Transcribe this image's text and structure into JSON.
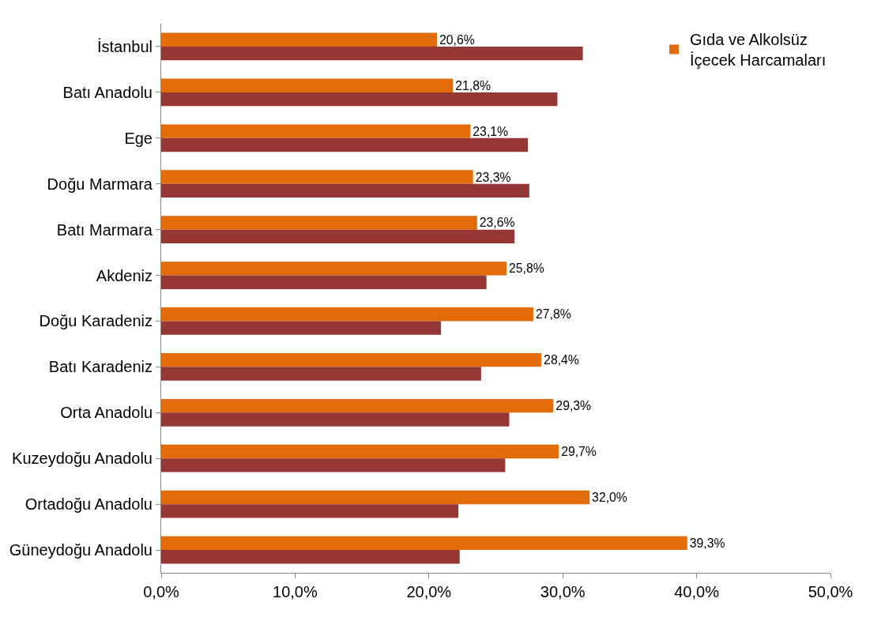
{
  "chart_data": {
    "type": "bar",
    "orientation": "horizontal",
    "categories": [
      "İstanbul",
      "Batı Anadolu",
      "Ege",
      "Doğu Marmara",
      "Batı Marmara",
      "Akdeniz",
      "Doğu Karadeniz",
      "Batı Karadeniz",
      "Orta Anadolu",
      "Kuzeydoğu Anadolu",
      "Ortadoğu Anadolu",
      "Güneydoğu Anadolu"
    ],
    "series": [
      {
        "name": "Gıda ve Alkolsüz İçecek Harcamaları",
        "color": "#e36c0a",
        "values": [
          20.6,
          21.8,
          23.1,
          23.3,
          23.6,
          25.8,
          27.8,
          28.4,
          29.3,
          29.7,
          32.0,
          39.3
        ],
        "value_labels": [
          "20,6%",
          "21,8%",
          "23,1%",
          "23,3%",
          "23,6%",
          "25,8%",
          "27,8%",
          "28,4%",
          "29,3%",
          "29,7%",
          "32,0%",
          "39,3%"
        ]
      },
      {
        "color": "#953735",
        "values": [
          31.5,
          29.6,
          27.4,
          27.5,
          26.4,
          24.3,
          20.9,
          23.9,
          26.0,
          25.7,
          22.2,
          22.3
        ]
      }
    ],
    "xlim": [
      0,
      50
    ],
    "xticks": [
      {
        "value": 0,
        "label": "0,0%"
      },
      {
        "value": 10,
        "label": "10,0%"
      },
      {
        "value": 20,
        "label": "20,0%"
      },
      {
        "value": 30,
        "label": "30,0%"
      },
      {
        "value": 40,
        "label": "40,0%"
      },
      {
        "value": 50,
        "label": "50,0%"
      }
    ],
    "grid": false,
    "legend": "top right"
  }
}
